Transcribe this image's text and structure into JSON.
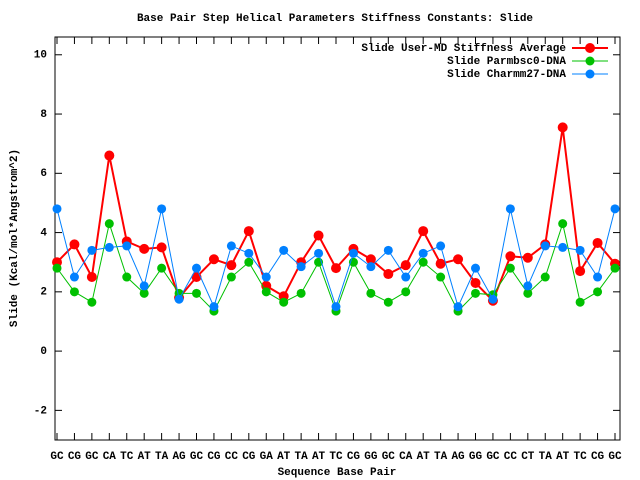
{
  "chart_data": {
    "type": "line",
    "title": "Base Pair Step Helical Parameters Stiffness Constants: Slide",
    "x_label": "Sequence Base Pair",
    "y_label": "Slide (Kcal/mol*Angstrom^2)",
    "categories": [
      "GC",
      "CG",
      "GC",
      "CA",
      "TC",
      "AT",
      "TA",
      "AG",
      "GC",
      "CG",
      "CC",
      "CG",
      "GA",
      "AT",
      "TA",
      "AT",
      "TC",
      "CG",
      "GG",
      "GC",
      "CA",
      "AT",
      "TA",
      "AG",
      "GG",
      "GC",
      "CC",
      "CT",
      "TA",
      "AT",
      "TC",
      "CG",
      "GC"
    ],
    "ylim": [
      -3,
      10.6
    ],
    "yticks": [
      -2,
      0,
      2,
      4,
      6,
      8,
      10
    ],
    "legend": "upper right",
    "series": [
      {
        "name": "Slide User-MD Stiffness Average",
        "color": "#ff0000",
        "values": [
          3.0,
          3.6,
          2.5,
          6.6,
          3.7,
          3.45,
          3.5,
          1.8,
          2.5,
          3.1,
          2.9,
          4.05,
          2.2,
          1.85,
          3.0,
          3.9,
          2.8,
          3.45,
          3.1,
          2.6,
          2.9,
          4.05,
          2.95,
          3.1,
          2.3,
          1.7,
          3.2,
          3.15,
          3.6,
          7.55,
          2.7,
          3.65,
          2.95
        ]
      },
      {
        "name": "Slide Parmbsc0-DNA",
        "color": "#00c000",
        "values": [
          2.8,
          2.0,
          1.65,
          4.3,
          2.5,
          1.95,
          2.8,
          1.95,
          1.95,
          1.35,
          2.5,
          3.0,
          2.0,
          1.65,
          1.95,
          3.0,
          1.35,
          3.0,
          1.95,
          1.65,
          2.0,
          3.0,
          2.5,
          1.35,
          1.95,
          1.9,
          2.8,
          1.95,
          2.5,
          4.3,
          1.65,
          2.0,
          2.8
        ]
      },
      {
        "name": "Slide Charmm27-DNA",
        "color": "#0080ff",
        "values": [
          4.8,
          2.5,
          3.4,
          3.5,
          3.55,
          2.2,
          4.8,
          1.75,
          2.8,
          1.5,
          3.55,
          3.3,
          2.5,
          3.4,
          2.85,
          3.3,
          1.5,
          3.3,
          2.85,
          3.4,
          2.5,
          3.3,
          3.55,
          1.5,
          2.8,
          1.75,
          4.8,
          2.2,
          3.55,
          3.5,
          3.4,
          2.5,
          4.8
        ]
      }
    ]
  }
}
